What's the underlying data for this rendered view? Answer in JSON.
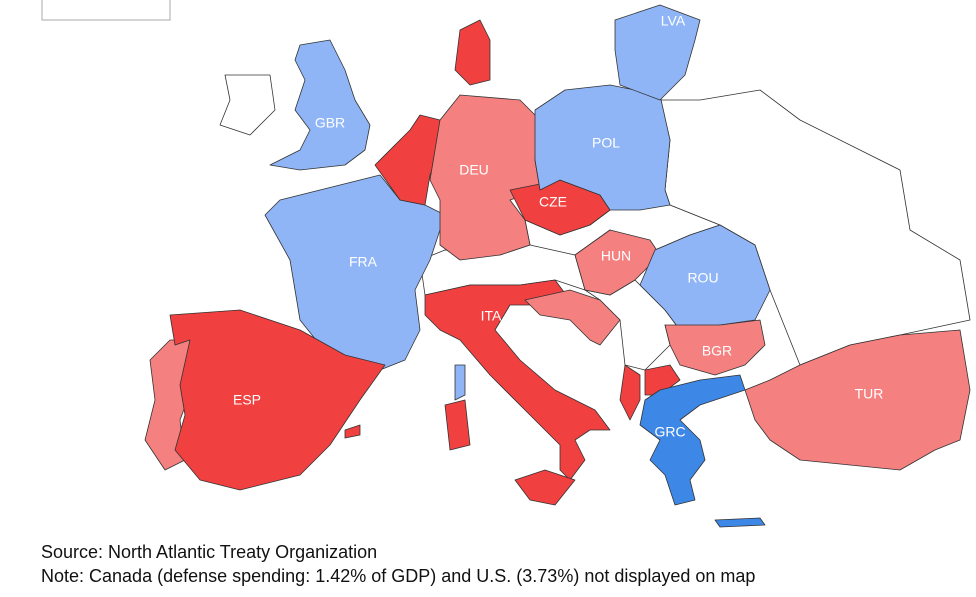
{
  "map": {
    "labels": [
      "LVA",
      "GBR",
      "DEU",
      "POL",
      "CZE",
      "FRA",
      "HUN",
      "ROU",
      "ITA",
      "BGR",
      "ESP",
      "TUR",
      "GRC"
    ]
  },
  "source": "Source: North Atlantic Treaty Organization",
  "note": "Note: Canada (defense spending: 1.42% of GDP) and U.S. (3.73%) not displayed on map"
}
